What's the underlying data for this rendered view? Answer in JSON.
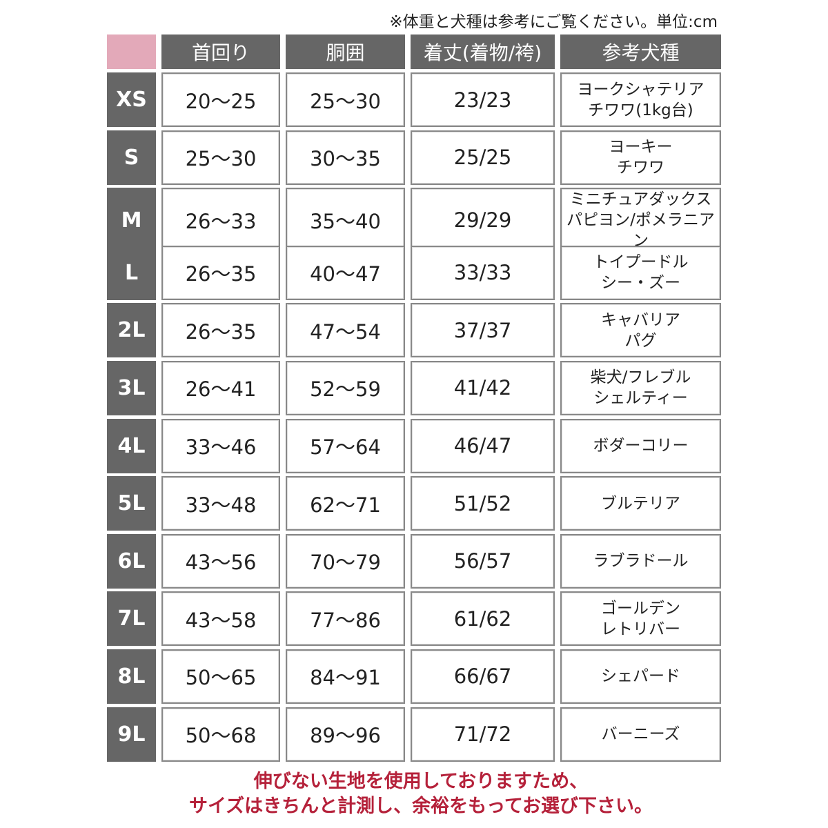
{
  "note": "※体重と犬種は参考にご覧ください。単位:cm",
  "colors": {
    "header": "#666666",
    "corner": "#e3a9b9",
    "footer_text": "#b5213a"
  },
  "headers": [
    "首回り",
    "胴囲",
    "着丈(着物/袴)",
    "参考犬種"
  ],
  "rows": [
    {
      "size": "XS",
      "neck": "20〜25",
      "chest": "25〜30",
      "length": "23/23",
      "breed1": "ヨークシャテリア",
      "breed2": "チワワ(1kg台)"
    },
    {
      "size": "S",
      "neck": "25〜30",
      "chest": "30〜35",
      "length": "25/25",
      "breed1": "ヨーキー",
      "breed2": "チワワ"
    },
    {
      "size": "M",
      "neck": "26〜33",
      "chest": "35〜40",
      "length": "29/29",
      "breed1": "ミニチュアダックス",
      "breed2": "パピヨン/ポメラニアン"
    },
    {
      "size": "L",
      "neck": "26〜35",
      "chest": "40〜47",
      "length": "33/33",
      "breed1": "トイプードル",
      "breed2": "シー・ズー"
    },
    {
      "size": "2L",
      "neck": "26〜35",
      "chest": "47〜54",
      "length": "37/37",
      "breed1": "キャバリア",
      "breed2": "パグ"
    },
    {
      "size": "3L",
      "neck": "26〜41",
      "chest": "52〜59",
      "length": "41/42",
      "breed1": "柴犬/フレブル",
      "breed2": "シェルティー"
    },
    {
      "size": "4L",
      "neck": "33〜46",
      "chest": "57〜64",
      "length": "46/47",
      "breed1": "ボダーコリー",
      "breed2": ""
    },
    {
      "size": "5L",
      "neck": "33〜48",
      "chest": "62〜71",
      "length": "51/52",
      "breed1": "ブルテリア",
      "breed2": ""
    },
    {
      "size": "6L",
      "neck": "43〜56",
      "chest": "70〜79",
      "length": "56/57",
      "breed1": "ラブラドール",
      "breed2": ""
    },
    {
      "size": "7L",
      "neck": "43〜58",
      "chest": "77〜86",
      "length": "61/62",
      "breed1": "ゴールデン",
      "breed2": "レトリバー"
    },
    {
      "size": "8L",
      "neck": "50〜65",
      "chest": "84〜91",
      "length": "66/67",
      "breed1": "シェパード",
      "breed2": ""
    },
    {
      "size": "9L",
      "neck": "50〜68",
      "chest": "89〜96",
      "length": "71/72",
      "breed1": "バーニーズ",
      "breed2": ""
    }
  ],
  "footer": {
    "line1": "伸びない生地を使用しておりますため、",
    "line2": "サイズはきちんと計測し、余裕をもってお選び下さい。"
  }
}
